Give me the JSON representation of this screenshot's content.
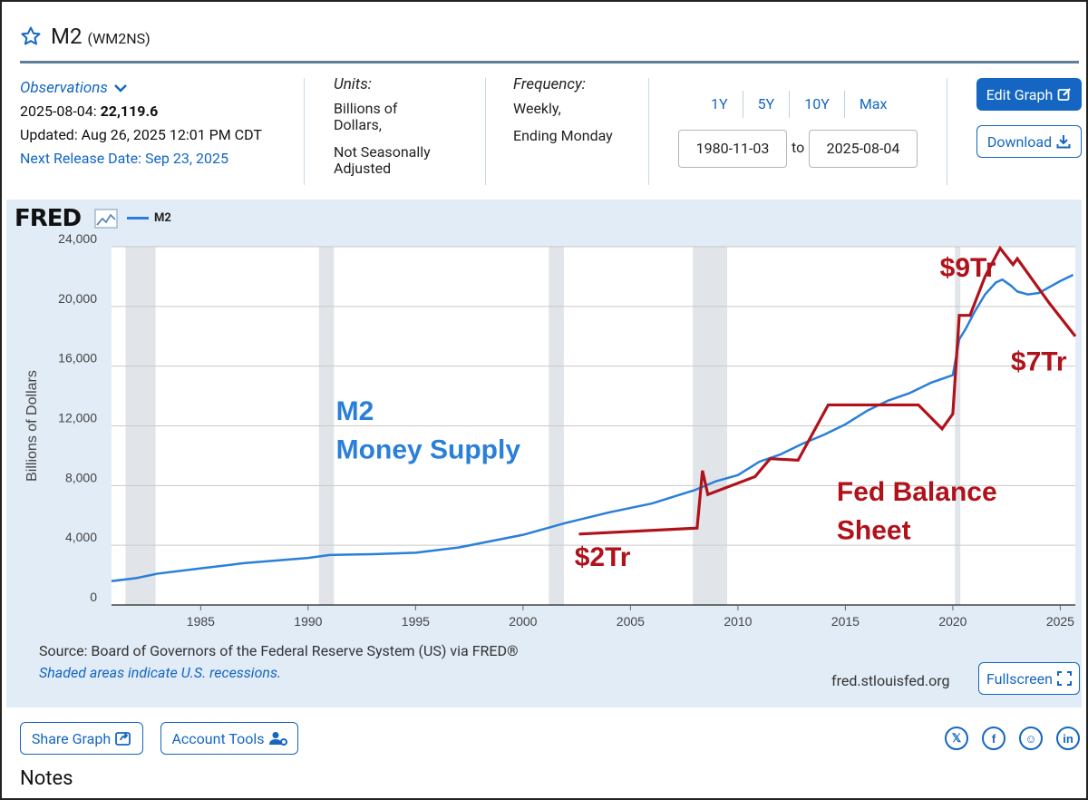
{
  "header": {
    "title": "M2",
    "code": "(WM2NS)"
  },
  "observations": {
    "label": "Observations",
    "latest_date": "2025-08-04:",
    "latest_value": "22,119.6",
    "updated": "Updated: Aug 26, 2025 12:01 PM CDT",
    "next_release": "Next Release Date: Sep 23, 2025"
  },
  "units": {
    "label": "Units:",
    "line1": "Billions of",
    "line2": "Dollars,",
    "line3": "Not Seasonally",
    "line4": "Adjusted"
  },
  "frequency": {
    "label": "Frequency:",
    "line1": "Weekly,",
    "line2": "Ending Monday"
  },
  "range": {
    "buttons": [
      "1Y",
      "5Y",
      "10Y",
      "Max"
    ],
    "start": "1980-11-03",
    "to": "to",
    "end": "2025-08-04"
  },
  "actions": {
    "edit": "Edit Graph",
    "download": "Download",
    "fullscreen": "Fullscreen",
    "share": "Share Graph",
    "account": "Account Tools"
  },
  "graph": {
    "logo": "FRED",
    "legend": "M2",
    "source": "Source: Board of Governors of the Federal Reserve System (US) via FRED®",
    "shaded_note": "Shaded areas indicate U.S. recessions.",
    "site": "fred.stlouisfed.org"
  },
  "colors": {
    "m2_line": "#2a7fd8",
    "overlay": "#b0121b",
    "recession": "#e1e5e9",
    "accent": "#1466c2"
  },
  "chart_data": {
    "type": "line",
    "ylabel": "Billions of Dollars",
    "xlim": [
      1980.85,
      2025.7
    ],
    "ylim": [
      0,
      24000
    ],
    "yticks": [
      0,
      4000,
      8000,
      12000,
      16000,
      20000,
      24000
    ],
    "ytick_labels": [
      "0",
      "4,000",
      "8,000",
      "12,000",
      "16,000",
      "20,000",
      "24,000"
    ],
    "xticks": [
      1985,
      1990,
      1995,
      2000,
      2005,
      2010,
      2015,
      2020,
      2025
    ],
    "recessions": [
      [
        1981.5,
        1982.9
      ],
      [
        1990.5,
        1991.2
      ],
      [
        2001.2,
        2001.9
      ],
      [
        2007.9,
        2009.5
      ],
      [
        2020.1,
        2020.35
      ]
    ],
    "series": [
      {
        "name": "M2",
        "x": [
          1980.85,
          1982,
          1983,
          1985,
          1987,
          1990,
          1991,
          1993,
          1995,
          1997,
          2000,
          2002,
          2004,
          2006,
          2008,
          2009,
          2010,
          2011,
          2012,
          2013,
          2014,
          2015,
          2016,
          2017,
          2018,
          2019,
          2020,
          2020.3,
          2020.6,
          2021,
          2021.5,
          2022,
          2022.3,
          2022.7,
          2023,
          2023.5,
          2024,
          2024.5,
          2025,
          2025.6
        ],
        "values": [
          1600,
          1800,
          2100,
          2450,
          2800,
          3150,
          3350,
          3400,
          3500,
          3850,
          4700,
          5500,
          6200,
          6800,
          7700,
          8300,
          8700,
          9600,
          10100,
          10800,
          11400,
          12100,
          13000,
          13700,
          14200,
          14900,
          15400,
          17800,
          18500,
          19600,
          20800,
          21600,
          21800,
          21400,
          21000,
          20800,
          20900,
          21300,
          21700,
          22119.6
        ]
      },
      {
        "name": "Fed Balance Sheet (annotation)",
        "x": [
          2002.6,
          2008.1,
          2008.35,
          2008.6,
          2010.8,
          2011.5,
          2012.8,
          2014.2,
          2017.6,
          2018.4,
          2019.5,
          2020.0,
          2020.3,
          2020.8,
          2021.5,
          2022.2,
          2022.8,
          2023.0,
          2024.5,
          2025.7
        ],
        "values": [
          4750,
          5150,
          9000,
          7400,
          8600,
          9800,
          9700,
          13400,
          13400,
          13400,
          11800,
          12800,
          19400,
          19400,
          22000,
          23900,
          22800,
          23200,
          20200,
          18000
        ]
      }
    ],
    "annotations": [
      {
        "text": "M2",
        "x": 1991.3,
        "y": 12400
      },
      {
        "text": "Money Supply",
        "x": 1991.3,
        "y": 9800
      },
      {
        "text": "Fed Balance",
        "x": 2014.6,
        "y": 7000
      },
      {
        "text": "Sheet",
        "x": 2014.6,
        "y": 4400
      },
      {
        "text": "$2Tr",
        "x": 2002.4,
        "y": 2600
      },
      {
        "text": "$9Tr",
        "x": 2019.4,
        "y": 22000
      },
      {
        "text": "$7Tr",
        "x": 2022.7,
        "y": 15700
      }
    ]
  }
}
